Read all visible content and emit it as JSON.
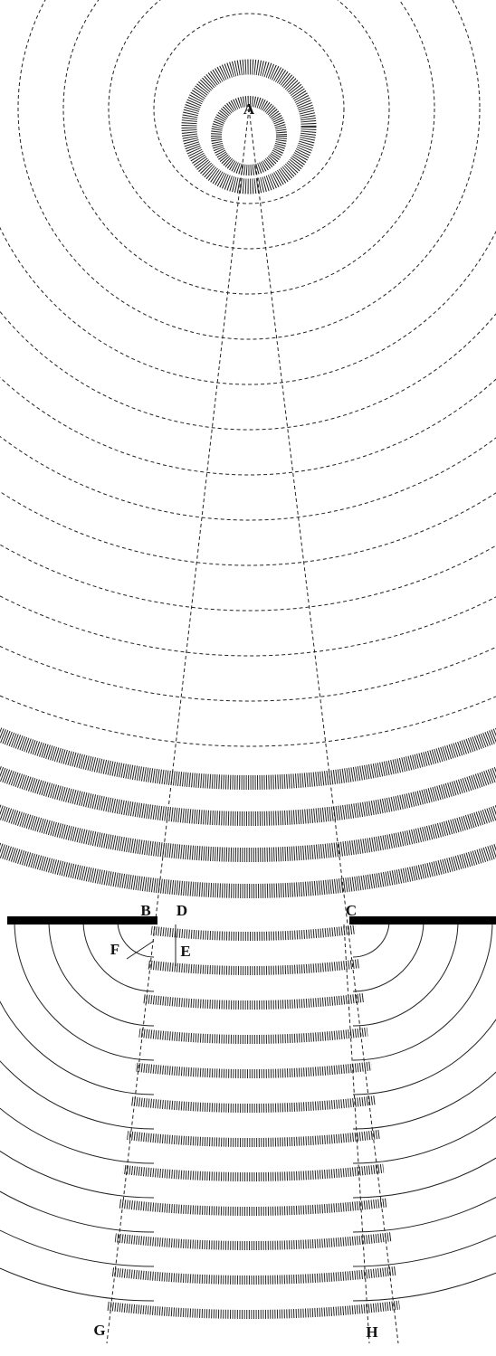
{
  "points": [
    {
      "label": "A"
    },
    {
      "label": "B"
    },
    {
      "label": "D"
    },
    {
      "label": "C"
    },
    {
      "label": "F"
    },
    {
      "label": "E"
    },
    {
      "label": "G"
    },
    {
      "label": "H"
    }
  ]
}
